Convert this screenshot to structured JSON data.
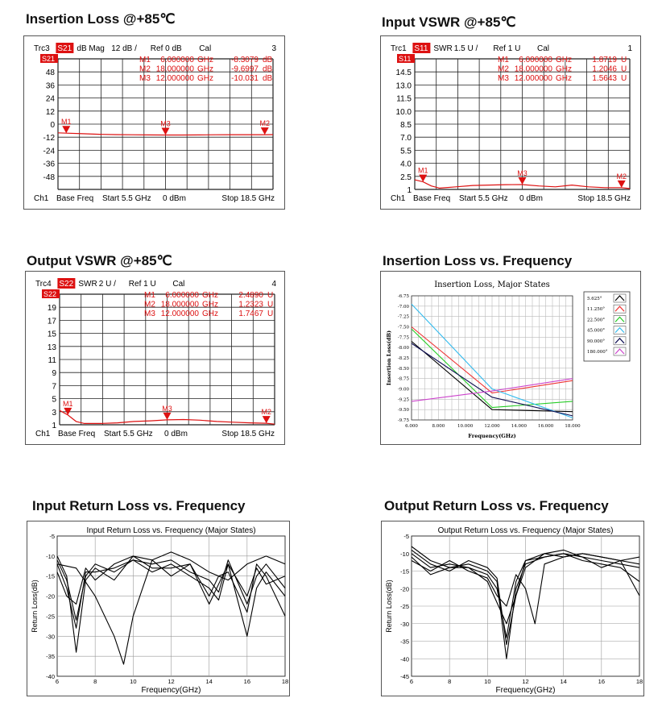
{
  "panels": [
    {
      "title": "Insertion Loss @+85℃",
      "header": {
        "trace": "Trc3",
        "param": "S21",
        "format": "dB Mag",
        "scale": "12 dB /",
        "ref": "Ref 0 dB",
        "cal": "Cal",
        "channel_num": "3"
      },
      "markers": [
        {
          "name": "M1",
          "freq": "6.000000",
          "unit_f": "GHz",
          "val": "-8.3079",
          "unit_v": "dB"
        },
        {
          "name": "M2",
          "freq": "18.000000",
          "unit_f": "GHz",
          "val": "-9.6997",
          "unit_v": "dB"
        },
        {
          "name": "M3",
          "freq": "12.000000",
          "unit_f": "GHz",
          "val": "-10.031",
          "unit_v": "dB"
        }
      ],
      "footer": {
        "ch": "Ch1",
        "base": "Base Freq",
        "start": "Start  5.5 GHz",
        "power": "0 dBm",
        "stop": "Stop  18.5 GHz"
      }
    },
    {
      "title": "Input VSWR @+85℃",
      "header": {
        "trace": "Trc1",
        "param": "S11",
        "format": "SWR",
        "scale": "1.5 U /",
        "ref": "Ref 1 U",
        "cal": "Cal",
        "channel_num": "1"
      },
      "markers": [
        {
          "name": "M1",
          "freq": "6.000000",
          "unit_f": "GHz",
          "val": "1.8719",
          "unit_v": "U"
        },
        {
          "name": "M2",
          "freq": "18.000000",
          "unit_f": "GHz",
          "val": "1.2046",
          "unit_v": "U"
        },
        {
          "name": "M3",
          "freq": "12.000000",
          "unit_f": "GHz",
          "val": "1.5643",
          "unit_v": "U"
        }
      ],
      "footer": {
        "ch": "Ch1",
        "base": "Base Freq",
        "start": "Start  5.5 GHz",
        "power": "0 dBm",
        "stop": "Stop  18.5 GHz"
      }
    },
    {
      "title": "Output VSWR @+85℃",
      "header": {
        "trace": "Trc4",
        "param": "S22",
        "format": "SWR",
        "scale": "2 U /",
        "ref": "Ref 1 U",
        "cal": "Cal",
        "channel_num": "4"
      },
      "markers": [
        {
          "name": "M1",
          "freq": "6.000000",
          "unit_f": "GHz",
          "val": "2.4890",
          "unit_v": "U"
        },
        {
          "name": "M2",
          "freq": "18.000000",
          "unit_f": "GHz",
          "val": "1.2323",
          "unit_v": "U"
        },
        {
          "name": "M3",
          "freq": "12.000000",
          "unit_f": "GHz",
          "val": "1.7467",
          "unit_v": "U"
        }
      ],
      "footer": {
        "ch": "Ch1",
        "base": "Base Freq",
        "start": "Start  5.5 GHz",
        "power": "0 dBm",
        "stop": "Stop  18.5 GHz"
      }
    },
    {
      "title": "Insertion Loss vs. Frequency"
    },
    {
      "title": "Input Return Loss vs. Frequency"
    },
    {
      "title": "Output Return Loss vs. Frequency"
    }
  ],
  "colors": {
    "trace": "#dd1111",
    "grid": "#222222",
    "param_bg": "#dd1111",
    "states": [
      "#000000",
      "#ee3333",
      "#22cc22",
      "#33bbee",
      "#111155",
      "#cc44cc"
    ]
  },
  "chart_data": [
    {
      "type": "line",
      "title": "",
      "xlim": [
        5.5,
        18.5
      ],
      "ylim": [
        -60,
        60
      ],
      "yticks": [
        48,
        36,
        24,
        12,
        0,
        -12,
        -24,
        -36,
        -48
      ],
      "series": [
        {
          "x": [
            5.5,
            6,
            7,
            8,
            9,
            10,
            11,
            12,
            13,
            14,
            15,
            16,
            17,
            18,
            18.5
          ],
          "values": [
            -8.0,
            -8.3,
            -8.8,
            -9.3,
            -9.6,
            -9.8,
            -9.9,
            -10.0,
            -10.0,
            -9.9,
            -9.8,
            -9.7,
            -9.7,
            -9.7,
            -9.6
          ]
        }
      ],
      "markers": [
        {
          "label": "M1",
          "x": 6,
          "y": -8.3
        },
        {
          "label": "M2",
          "x": 18,
          "y": -9.7
        },
        {
          "label": "M3",
          "x": 12,
          "y": -10.0
        }
      ]
    },
    {
      "type": "line",
      "title": "",
      "xlim": [
        5.5,
        18.5
      ],
      "ylim": [
        1,
        16
      ],
      "yticks": [
        14.5,
        13.0,
        11.5,
        10.0,
        8.5,
        7.0,
        5.5,
        4.0,
        2.5,
        1
      ],
      "ytick_labels": [
        "14.5",
        "13.0",
        "11.5",
        "10.0",
        "8.5",
        "7.0",
        "5.5",
        "4.0",
        "2.5",
        "1"
      ],
      "series": [
        {
          "x": [
            5.5,
            6,
            6.5,
            7,
            8,
            9,
            10,
            11,
            12,
            13,
            14,
            15,
            16,
            17,
            18,
            18.5
          ],
          "values": [
            2.1,
            1.87,
            1.4,
            1.15,
            1.3,
            1.45,
            1.5,
            1.55,
            1.56,
            1.4,
            1.3,
            1.5,
            1.3,
            1.2,
            1.2,
            1.1
          ]
        }
      ],
      "markers": [
        {
          "label": "M1",
          "x": 6,
          "y": 1.87
        },
        {
          "label": "M2",
          "x": 18,
          "y": 1.2
        },
        {
          "label": "M3",
          "x": 12,
          "y": 1.56
        }
      ]
    },
    {
      "type": "line",
      "title": "",
      "xlim": [
        5.5,
        18.5
      ],
      "ylim": [
        1,
        21
      ],
      "yticks": [
        19,
        17,
        15,
        13,
        11,
        9,
        7,
        5,
        3,
        1
      ],
      "series": [
        {
          "x": [
            5.5,
            6,
            6.5,
            7,
            8,
            9,
            10,
            11,
            12,
            13,
            14,
            15,
            16,
            17,
            18,
            18.5
          ],
          "values": [
            3.2,
            2.49,
            1.5,
            1.2,
            1.2,
            1.3,
            1.5,
            1.6,
            1.75,
            1.8,
            1.7,
            1.5,
            1.4,
            1.3,
            1.23,
            1.1
          ]
        }
      ],
      "markers": [
        {
          "label": "M1",
          "x": 6,
          "y": 2.49
        },
        {
          "label": "M2",
          "x": 18,
          "y": 1.23
        },
        {
          "label": "M3",
          "x": 12,
          "y": 1.75
        }
      ]
    },
    {
      "type": "line",
      "title": "Insertion Loss, Major States",
      "xlabel": "Frequency(GHz)",
      "ylabel": "Insertion Loss(dB)",
      "xlim": [
        6,
        18
      ],
      "ylim": [
        -9.75,
        -6.75
      ],
      "xticks": [
        "6.000",
        "8.000",
        "10.000",
        "12.000",
        "14.000",
        "16.000",
        "18.000"
      ],
      "yticks": [
        "-6.75",
        "-7.00",
        "-7.25",
        "-7.50",
        "-7.75",
        "-8.00",
        "-8.25",
        "-8.50",
        "-8.75",
        "-9.00",
        "-9.25",
        "-9.50",
        "-9.75"
      ],
      "series": [
        {
          "name": "5.625°",
          "x": [
            6,
            12,
            18
          ],
          "values": [
            -7.85,
            -9.5,
            -9.55
          ]
        },
        {
          "name": "11.250°",
          "x": [
            6,
            12,
            18
          ],
          "values": [
            -7.5,
            -9.1,
            -8.8
          ]
        },
        {
          "name": "22.500°",
          "x": [
            6,
            12,
            18
          ],
          "values": [
            -7.55,
            -9.45,
            -9.3
          ]
        },
        {
          "name": "45.000°",
          "x": [
            6,
            12,
            18
          ],
          "values": [
            -6.95,
            -9.0,
            -9.7
          ]
        },
        {
          "name": "90.000°",
          "x": [
            6,
            12,
            18
          ],
          "values": [
            -7.9,
            -9.2,
            -9.65
          ]
        },
        {
          "name": "180.000°",
          "x": [
            6,
            12,
            18
          ],
          "values": [
            -9.3,
            -9.05,
            -8.75
          ]
        }
      ]
    },
    {
      "type": "line",
      "title": "Input Return Loss vs. Frequency (Major States)",
      "xlabel": "Frequency(GHz)",
      "ylabel": "Return Loss(dB)",
      "xlim": [
        6,
        18
      ],
      "ylim": [
        -40,
        -5
      ],
      "xticks": [
        "6",
        "8",
        "10",
        "12",
        "14",
        "16",
        "18"
      ],
      "yticks": [
        "-5",
        "-10",
        "-15",
        "-20",
        "-25",
        "-30",
        "-35",
        "-40"
      ],
      "series": [
        {
          "x": [
            6,
            6.5,
            7,
            7.5,
            8,
            9,
            10,
            11,
            12,
            13,
            14,
            14.5,
            15,
            16,
            16.5,
            17,
            18
          ],
          "values": [
            -10,
            -15,
            -34,
            -16,
            -13,
            -16,
            -10,
            -11,
            -15,
            -12,
            -22,
            -17,
            -12,
            -30,
            -18,
            -14,
            -20
          ]
        },
        {
          "x": [
            6,
            6.5,
            7,
            7.5,
            8,
            9,
            10,
            11,
            12,
            13,
            14,
            14.5,
            15,
            16,
            16.5,
            17,
            18
          ],
          "values": [
            -12,
            -18,
            -28,
            -14,
            -14,
            -13,
            -11,
            -14,
            -12,
            -15,
            -18,
            -21,
            -12,
            -20,
            -13,
            -17,
            -15
          ]
        },
        {
          "x": [
            6,
            6.5,
            7,
            7.5,
            8,
            9,
            10,
            11,
            12,
            13,
            14,
            14.5,
            15,
            16,
            16.5,
            17,
            18
          ],
          "values": [
            -14,
            -20,
            -22,
            -13,
            -16,
            -12,
            -10,
            -13,
            -13,
            -12,
            -20,
            -15,
            -14,
            -24,
            -12,
            -15,
            -25
          ]
        },
        {
          "x": [
            6,
            6.5,
            7,
            7.5,
            8,
            9,
            10,
            11,
            12,
            13,
            14,
            14.5,
            15,
            16,
            16.5,
            17,
            18
          ],
          "values": [
            -11,
            -16,
            -26,
            -15,
            -12,
            -14,
            -11,
            -12,
            -11,
            -14,
            -16,
            -19,
            -11,
            -22,
            -15,
            -12,
            -18
          ]
        },
        {
          "x": [
            6,
            7,
            8,
            9,
            9.5,
            10,
            11,
            12,
            13,
            14,
            15,
            16,
            17,
            18
          ],
          "values": [
            -12,
            -13,
            -20,
            -30,
            -37,
            -25,
            -11,
            -9,
            -11,
            -14,
            -16,
            -12,
            -10,
            -12
          ]
        }
      ]
    },
    {
      "type": "line",
      "title": "Output Return Loss vs. Frequency (Major States)",
      "xlabel": "Frequency(GHz)",
      "ylabel": "Return Loss(dB)",
      "xlim": [
        6,
        18
      ],
      "ylim": [
        -45,
        -5
      ],
      "xticks": [
        "6",
        "8",
        "10",
        "12",
        "14",
        "16",
        "18"
      ],
      "yticks": [
        "-5",
        "-10",
        "-15",
        "-20",
        "-25",
        "-30",
        "-35",
        "-40",
        "-45"
      ],
      "series": [
        {
          "x": [
            6,
            7,
            8,
            9,
            10,
            10.5,
            11,
            11.5,
            12,
            13,
            14,
            15,
            16,
            17,
            18
          ],
          "values": [
            -8,
            -12,
            -14,
            -13,
            -15,
            -18,
            -40,
            -20,
            -13,
            -11,
            -10,
            -11,
            -12,
            -13,
            -14
          ]
        },
        {
          "x": [
            6,
            7,
            8,
            9,
            10,
            10.5,
            11,
            11.5,
            12,
            13,
            14,
            15,
            16,
            17,
            18
          ],
          "values": [
            -10,
            -14,
            -13,
            -14,
            -16,
            -20,
            -34,
            -18,
            -12,
            -10,
            -11,
            -10,
            -11,
            -12,
            -13
          ]
        },
        {
          "x": [
            6,
            7,
            8,
            9,
            10,
            10.5,
            11,
            11.5,
            12,
            13,
            14,
            15,
            16,
            17,
            18
          ],
          "values": [
            -9,
            -13,
            -15,
            -12,
            -14,
            -17,
            -36,
            -22,
            -12,
            -11,
            -10,
            -12,
            -13,
            -14,
            -18
          ]
        },
        {
          "x": [
            6,
            7,
            8,
            9,
            10,
            10.5,
            11,
            11.5,
            12,
            12.5,
            13,
            14,
            15,
            16,
            17,
            18
          ],
          "values": [
            -12,
            -15,
            -12,
            -15,
            -17,
            -22,
            -25,
            -16,
            -20,
            -30,
            -13,
            -11,
            -10,
            -11,
            -12,
            -11
          ]
        },
        {
          "x": [
            6,
            7,
            8,
            9,
            10,
            11,
            12,
            13,
            14,
            15,
            16,
            17,
            18
          ],
          "values": [
            -11,
            -16,
            -14,
            -14,
            -18,
            -30,
            -14,
            -10,
            -9,
            -11,
            -14,
            -12,
            -22
          ]
        }
      ]
    }
  ]
}
